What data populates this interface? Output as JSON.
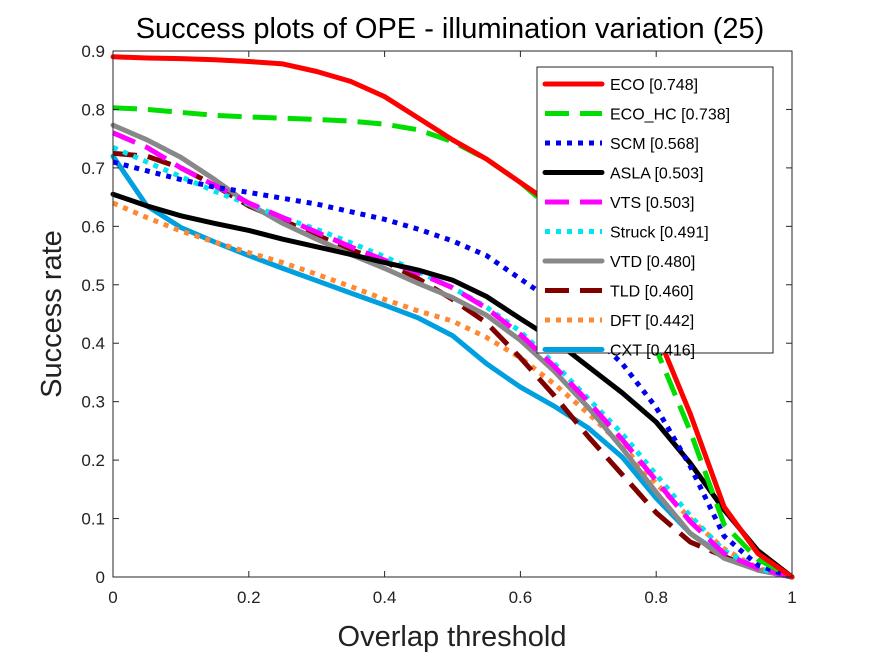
{
  "chart_data": {
    "type": "line",
    "title": "Success plots of OPE - illumination variation (25)",
    "xlabel": "Overlap threshold",
    "ylabel": "Success rate",
    "xlim": [
      0,
      1
    ],
    "ylim": [
      0,
      0.9
    ],
    "xticks": [
      "0",
      "0.2",
      "0.4",
      "0.6",
      "0.8",
      "1"
    ],
    "yticks": [
      "0",
      "0.1",
      "0.2",
      "0.3",
      "0.4",
      "0.5",
      "0.6",
      "0.7",
      "0.8",
      "0.9"
    ],
    "legend_position": "top-right",
    "grid": false,
    "x": [
      0,
      0.05,
      0.1,
      0.15,
      0.2,
      0.25,
      0.3,
      0.35,
      0.4,
      0.45,
      0.5,
      0.55,
      0.6,
      0.65,
      0.7,
      0.75,
      0.8,
      0.85,
      0.9,
      0.95,
      1.0
    ],
    "series": [
      {
        "name": "ECO [0.748]",
        "color": "#ff0000",
        "style": "solid",
        "values": [
          0.89,
          0.888,
          0.887,
          0.885,
          0.882,
          0.878,
          0.865,
          0.848,
          0.822,
          0.785,
          0.748,
          0.715,
          0.675,
          0.635,
          0.59,
          0.515,
          0.42,
          0.28,
          0.12,
          0.04,
          0.0
        ]
      },
      {
        "name": "ECO_HC [0.738]",
        "color": "#00dd00",
        "style": "dash",
        "values": [
          0.803,
          0.8,
          0.795,
          0.79,
          0.787,
          0.785,
          0.783,
          0.78,
          0.775,
          0.765,
          0.745,
          0.715,
          0.675,
          0.625,
          0.565,
          0.495,
          0.39,
          0.25,
          0.09,
          0.03,
          0.0
        ]
      },
      {
        "name": "SCM [0.568]",
        "color": "#0000ee",
        "style": "dot",
        "values": [
          0.71,
          0.695,
          0.68,
          0.667,
          0.658,
          0.648,
          0.638,
          0.625,
          0.612,
          0.595,
          0.575,
          0.55,
          0.51,
          0.47,
          0.42,
          0.365,
          0.29,
          0.19,
          0.07,
          0.02,
          0.0
        ]
      },
      {
        "name": "ASLA [0.503]",
        "color": "#000000",
        "style": "solid",
        "values": [
          0.655,
          0.635,
          0.618,
          0.605,
          0.593,
          0.578,
          0.565,
          0.552,
          0.538,
          0.525,
          0.508,
          0.48,
          0.442,
          0.405,
          0.36,
          0.315,
          0.265,
          0.195,
          0.115,
          0.045,
          0.0
        ]
      },
      {
        "name": "VTS [0.503]",
        "color": "#ff00ff",
        "style": "dash",
        "values": [
          0.76,
          0.735,
          0.7,
          0.67,
          0.64,
          0.615,
          0.59,
          0.565,
          0.542,
          0.52,
          0.495,
          0.46,
          0.415,
          0.36,
          0.3,
          0.235,
          0.165,
          0.095,
          0.04,
          0.015,
          0.0
        ]
      },
      {
        "name": "Struck [0.491]",
        "color": "#00e5ee",
        "style": "dot",
        "values": [
          0.735,
          0.71,
          0.685,
          0.66,
          0.638,
          0.615,
          0.595,
          0.572,
          0.548,
          0.522,
          0.495,
          0.462,
          0.42,
          0.365,
          0.305,
          0.245,
          0.175,
          0.105,
          0.045,
          0.015,
          0.0
        ]
      },
      {
        "name": "VTD [0.480]",
        "color": "#888888",
        "style": "solid",
        "values": [
          0.773,
          0.748,
          0.718,
          0.68,
          0.638,
          0.605,
          0.578,
          0.552,
          0.528,
          0.502,
          0.478,
          0.448,
          0.405,
          0.352,
          0.29,
          0.22,
          0.145,
          0.075,
          0.032,
          0.012,
          0.0
        ]
      },
      {
        "name": "TLD [0.460]",
        "color": "#800000",
        "style": "dash",
        "values": [
          0.725,
          0.72,
          0.7,
          0.67,
          0.635,
          0.61,
          0.585,
          0.56,
          0.54,
          0.51,
          0.475,
          0.435,
          0.375,
          0.31,
          0.24,
          0.175,
          0.11,
          0.06,
          0.035,
          0.012,
          0.0
        ]
      },
      {
        "name": "DFT [0.442]",
        "color": "#ff8833",
        "style": "dot",
        "values": [
          0.64,
          0.615,
          0.592,
          0.573,
          0.555,
          0.538,
          0.518,
          0.497,
          0.475,
          0.455,
          0.438,
          0.41,
          0.375,
          0.33,
          0.28,
          0.225,
          0.16,
          0.1,
          0.048,
          0.015,
          0.0
        ]
      },
      {
        "name": "CXT [0.416]",
        "color": "#00a0e0",
        "style": "solid",
        "values": [
          0.72,
          0.635,
          0.598,
          0.573,
          0.55,
          0.528,
          0.507,
          0.486,
          0.465,
          0.443,
          0.413,
          0.365,
          0.325,
          0.292,
          0.255,
          0.205,
          0.135,
          0.075,
          0.035,
          0.012,
          0.0
        ]
      }
    ]
  }
}
